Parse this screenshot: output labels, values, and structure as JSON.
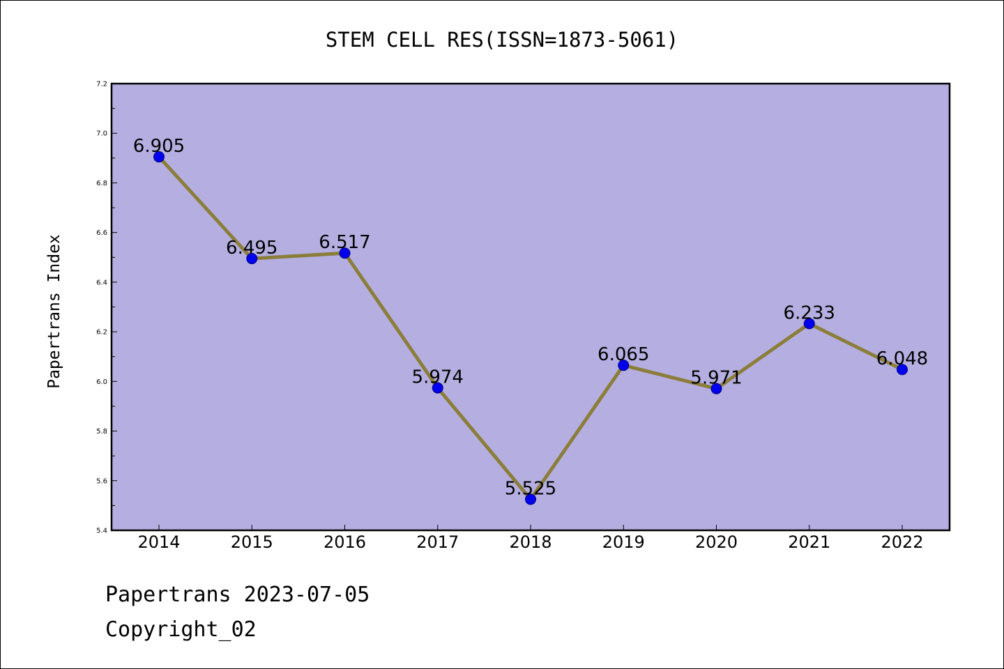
{
  "chart_data": {
    "type": "line",
    "title": "STEM CELL RES(ISSN=1873-5061)",
    "ylabel": "Papertrans Index",
    "xlabel": "",
    "categories": [
      "2014",
      "2015",
      "2016",
      "2017",
      "2018",
      "2019",
      "2020",
      "2021",
      "2022"
    ],
    "series": [
      {
        "values": [
          6.905,
          6.495,
          6.517,
          5.974,
          5.525,
          6.065,
          5.971,
          6.233,
          6.048
        ],
        "data_labels": [
          "6.905",
          "6.495",
          "6.517",
          "5.974",
          "5.525",
          "6.065",
          "5.971",
          "6.233",
          "6.048"
        ]
      }
    ],
    "ylim": [
      5.4,
      7.2
    ],
    "yticks": [
      "5.4",
      "5.6",
      "5.8",
      "6.0",
      "6.2",
      "6.4",
      "6.6",
      "6.8",
      "7.0",
      "7.2"
    ],
    "grid": false,
    "colors": {
      "plot_background": "#b5afe1",
      "line": "#8b7d3a",
      "marker": "#0000ee",
      "marker_edge": "#000080",
      "axes": "#000000"
    }
  },
  "footer": {
    "date_line": "Papertrans 2023-07-05",
    "copyright_line": "Copyright_02"
  }
}
